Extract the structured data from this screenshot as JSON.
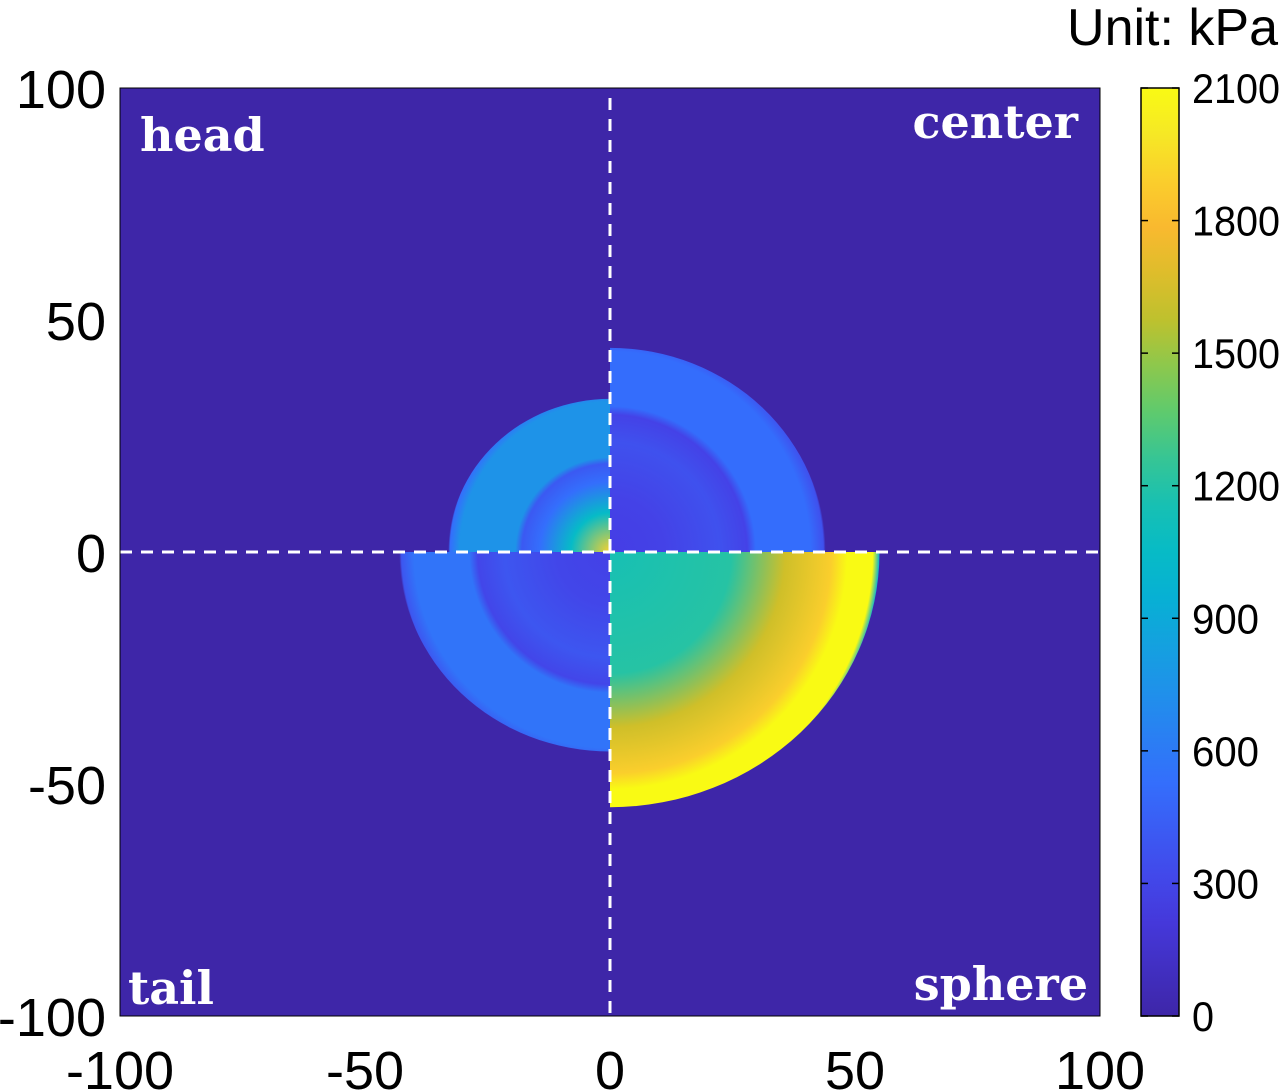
{
  "chart_data": {
    "type": "heatmap",
    "title": "",
    "xlabel": "",
    "ylabel": "",
    "xlim": [
      -100,
      100
    ],
    "ylim": [
      -100,
      100
    ],
    "xticks": [
      -100,
      -50,
      0,
      50,
      100
    ],
    "yticks": [
      -100,
      -50,
      0,
      50,
      100
    ],
    "grid": false,
    "quadrants": [
      {
        "label": "head",
        "position": "top-left",
        "ring_inner_radius": 18,
        "ring_outer_radius": 33,
        "ring_peak_kPa": 750,
        "core_radius": 8,
        "core_peak_kPa": 1900
      },
      {
        "label": "center",
        "position": "top-right",
        "ring_inner_radius": 28,
        "ring_outer_radius": 44,
        "ring_peak_kPa": 520,
        "core_radius": 0,
        "core_peak_kPa": 0
      },
      {
        "label": "tail",
        "position": "bottom-left",
        "ring_inner_radius": 27,
        "ring_outer_radius": 43,
        "ring_peak_kPa": 560,
        "core_radius": 0,
        "core_peak_kPa": 0
      },
      {
        "label": "sphere",
        "position": "bottom-right",
        "outer_radius": 55,
        "center_kPa": 1150,
        "edge_kPa": 2100
      }
    ],
    "background_kPa": 0,
    "divider_lines": {
      "x": 0,
      "y": 0,
      "style": "dashed",
      "color": "#ffffff"
    },
    "colorbar": {
      "label": "Unit: kPa",
      "min": 0,
      "max": 2100,
      "ticks": [
        0,
        300,
        600,
        900,
        1200,
        1500,
        1800,
        2100
      ],
      "colormap": "parula"
    }
  }
}
